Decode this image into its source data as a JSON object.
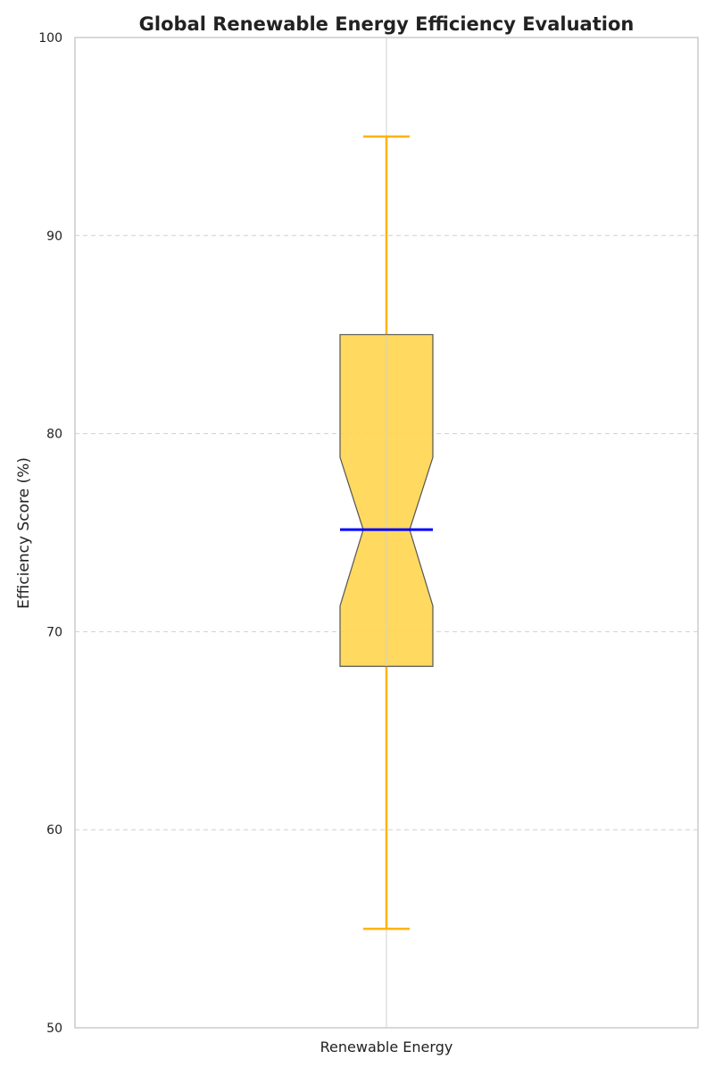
{
  "chart_data": {
    "type": "box",
    "title": "Global Renewable Energy Efficiency Evaluation",
    "xlabel": "",
    "ylabel": "Efficiency Score (%)",
    "ylim": [
      50,
      100
    ],
    "yticks": [
      50,
      60,
      70,
      80,
      90,
      100
    ],
    "categories": [
      "Renewable Energy"
    ],
    "boxes": [
      {
        "category": "Renewable Energy",
        "whisker_low": 55,
        "q1": 68.25,
        "median": 75.15,
        "q3": 85,
        "whisker_high": 95,
        "notch_low": 71.3,
        "notch_high": 78.8
      }
    ],
    "grid": true,
    "notched": true,
    "colors": {
      "box_fill": "#FFD54F",
      "box_edge": "#555555",
      "whisker": "#FFB300",
      "median": "#0000FF",
      "grid": "#D0D0D0",
      "axes": "#CCCCCC",
      "text": "#222222"
    }
  }
}
